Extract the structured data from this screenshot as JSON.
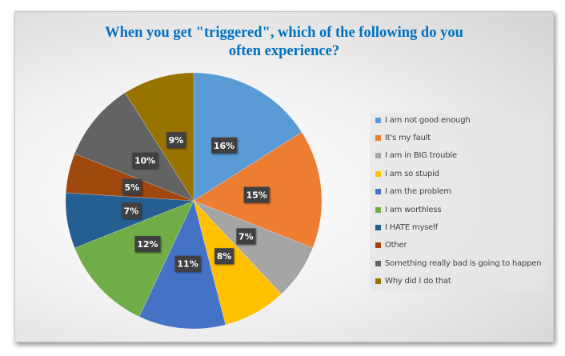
{
  "chart_data": {
    "type": "pie",
    "title": [
      "When you get \"triggered\", which of the following do you",
      "often experience?"
    ],
    "legend_position": "right",
    "slices": [
      {
        "label": "I am not good enough",
        "value": 16,
        "data_label": "16%",
        "color": "#5B9BD5"
      },
      {
        "label": "It's my fault",
        "value": 15,
        "data_label": "15%",
        "color": "#ED7D31"
      },
      {
        "label": "I am in BIG trouble",
        "value": 7,
        "data_label": "7%",
        "color": "#A5A5A5"
      },
      {
        "label": "I am so stupid",
        "value": 8,
        "data_label": "8%",
        "color": "#FFC000"
      },
      {
        "label": "I am the problem",
        "value": 11,
        "data_label": "11%",
        "color": "#4472C4"
      },
      {
        "label": "I am worthless",
        "value": 12,
        "data_label": "12%",
        "color": "#70AD47"
      },
      {
        "label": "I HATE myself",
        "value": 7,
        "data_label": "7%",
        "color": "#255E91"
      },
      {
        "label": "Other",
        "value": 5,
        "data_label": "5%",
        "color": "#9E480E"
      },
      {
        "label": "Something really bad is going to happen",
        "value": 10,
        "data_label": "10%",
        "color": "#636363"
      },
      {
        "label": "Why did I do that",
        "value": 9,
        "data_label": "9%",
        "color": "#997300"
      }
    ]
  }
}
